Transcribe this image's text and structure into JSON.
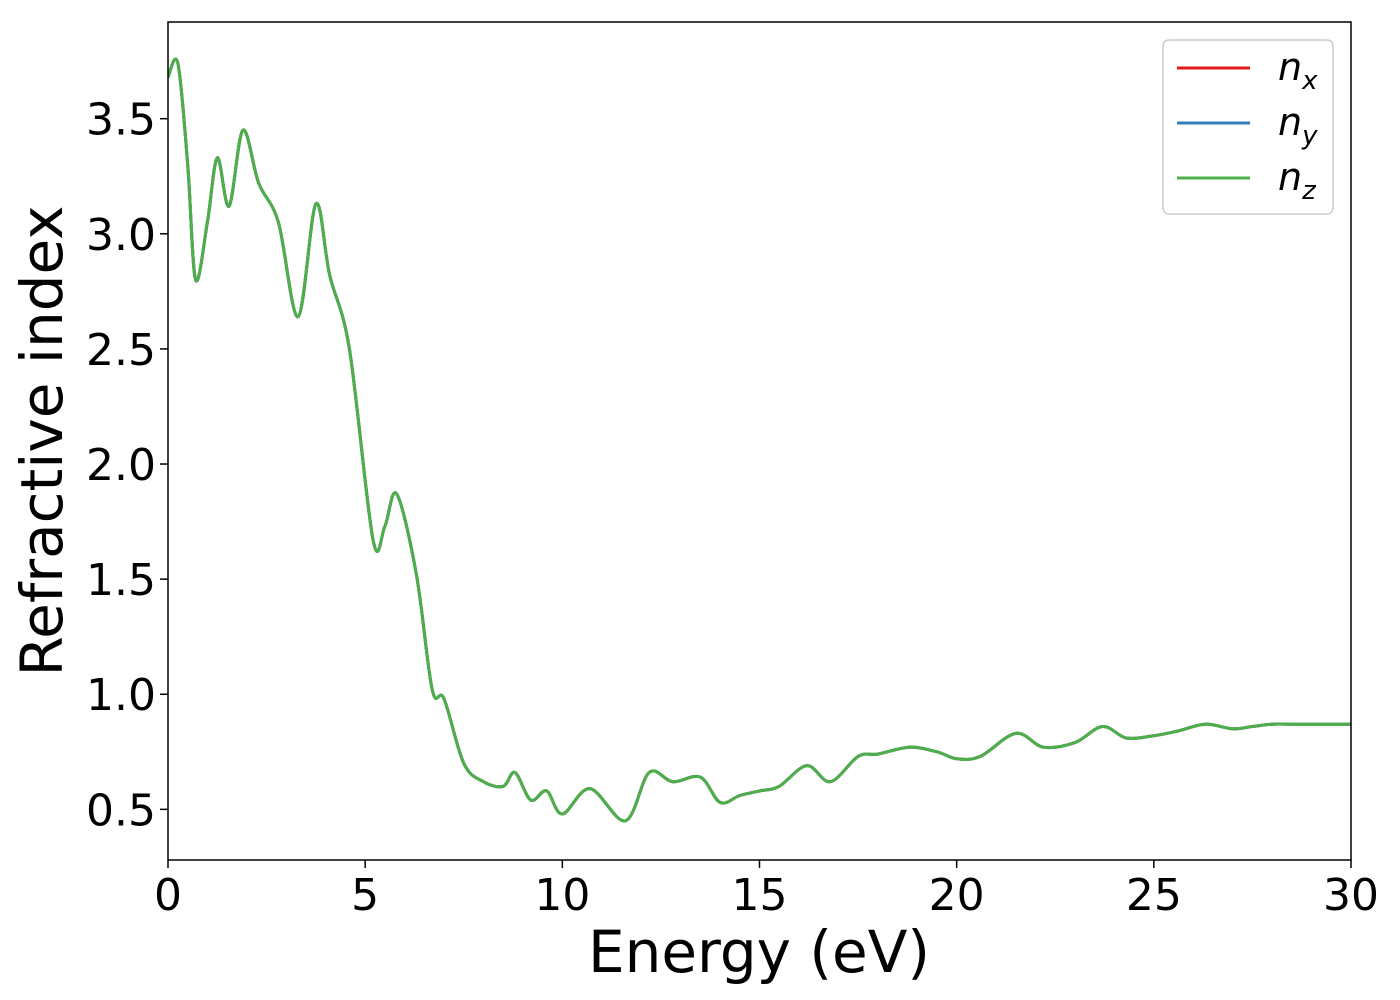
{
  "chart_data": {
    "type": "line",
    "xlabel": "Energy (eV)",
    "ylabel": "Refractive index",
    "xlim": [
      0,
      30
    ],
    "ylim": [
      0.28,
      3.92
    ],
    "xticks": [
      0,
      5,
      10,
      15,
      20,
      25,
      30
    ],
    "xtick_labels": [
      "0",
      "5",
      "10",
      "15",
      "20",
      "25",
      "30"
    ],
    "yticks": [
      0.5,
      1.0,
      1.5,
      2.0,
      2.5,
      3.0,
      3.5
    ],
    "ytick_labels": [
      "0.5",
      "1.0",
      "1.5",
      "2.0",
      "2.5",
      "3.0",
      "3.5"
    ],
    "grid": false,
    "legend_position": "top-right",
    "x": [
      0,
      0.25,
      0.5,
      0.7,
      1.0,
      1.25,
      1.55,
      1.9,
      2.3,
      2.8,
      3.3,
      3.75,
      4.1,
      4.6,
      5.2,
      5.5,
      5.8,
      6.3,
      6.7,
      7.0,
      7.5,
      8.0,
      8.5,
      8.8,
      9.2,
      9.6,
      10.0,
      10.7,
      11.6,
      12.2,
      12.8,
      13.5,
      14.0,
      14.5,
      15.0,
      15.5,
      16.2,
      16.8,
      17.5,
      18.0,
      18.8,
      19.5,
      20.0,
      20.6,
      21.5,
      22.2,
      23.0,
      23.7,
      24.3,
      25.0,
      25.6,
      26.3,
      27.0,
      27.5,
      28.0,
      28.5,
      29.0,
      29.5,
      30.0
    ],
    "series": [
      {
        "name": "n",
        "name_sub": "x",
        "color": "#e41a1c",
        "y": [
          3.68,
          3.74,
          3.3,
          2.8,
          3.05,
          3.33,
          3.12,
          3.45,
          3.22,
          3.05,
          2.64,
          3.13,
          2.82,
          2.5,
          1.67,
          1.73,
          1.87,
          1.52,
          1.02,
          0.98,
          0.7,
          0.62,
          0.6,
          0.66,
          0.54,
          0.58,
          0.48,
          0.59,
          0.45,
          0.66,
          0.62,
          0.64,
          0.53,
          0.56,
          0.58,
          0.6,
          0.69,
          0.62,
          0.73,
          0.74,
          0.77,
          0.75,
          0.72,
          0.73,
          0.83,
          0.77,
          0.79,
          0.86,
          0.81,
          0.82,
          0.84,
          0.87,
          0.85,
          0.86,
          0.87,
          0.87,
          0.87,
          0.87,
          0.87
        ]
      },
      {
        "name": "n",
        "name_sub": "y",
        "color": "#377eb8",
        "y": [
          3.68,
          3.74,
          3.3,
          2.8,
          3.05,
          3.33,
          3.12,
          3.45,
          3.22,
          3.05,
          2.64,
          3.13,
          2.82,
          2.5,
          1.67,
          1.73,
          1.87,
          1.52,
          1.02,
          0.98,
          0.7,
          0.62,
          0.6,
          0.66,
          0.54,
          0.58,
          0.48,
          0.59,
          0.45,
          0.66,
          0.62,
          0.64,
          0.53,
          0.56,
          0.58,
          0.6,
          0.69,
          0.62,
          0.73,
          0.74,
          0.77,
          0.75,
          0.72,
          0.73,
          0.83,
          0.77,
          0.79,
          0.86,
          0.81,
          0.82,
          0.84,
          0.87,
          0.85,
          0.86,
          0.87,
          0.87,
          0.87,
          0.87,
          0.87
        ]
      },
      {
        "name": "n",
        "name_sub": "z",
        "color": "#4daf4a",
        "y": [
          3.68,
          3.74,
          3.3,
          2.8,
          3.05,
          3.33,
          3.12,
          3.45,
          3.22,
          3.05,
          2.64,
          3.13,
          2.82,
          2.5,
          1.67,
          1.73,
          1.87,
          1.52,
          1.02,
          0.98,
          0.7,
          0.62,
          0.6,
          0.66,
          0.54,
          0.58,
          0.48,
          0.59,
          0.45,
          0.66,
          0.62,
          0.64,
          0.53,
          0.56,
          0.58,
          0.6,
          0.69,
          0.62,
          0.73,
          0.74,
          0.77,
          0.75,
          0.72,
          0.73,
          0.83,
          0.77,
          0.79,
          0.86,
          0.81,
          0.82,
          0.84,
          0.87,
          0.85,
          0.86,
          0.87,
          0.87,
          0.87,
          0.87,
          0.87
        ]
      }
    ]
  }
}
